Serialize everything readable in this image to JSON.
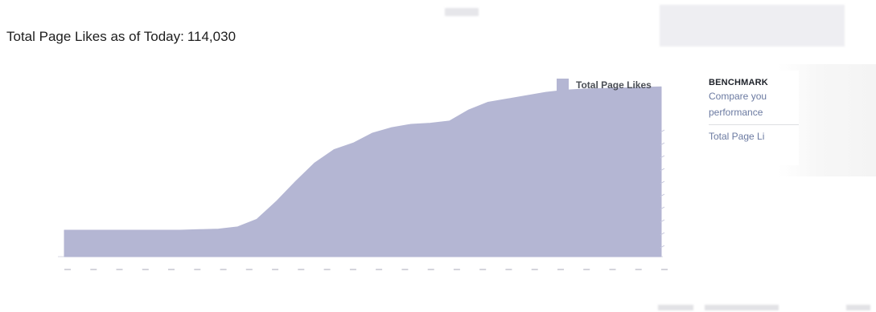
{
  "header": {
    "label": "Total Page Likes as of Today:",
    "value": "114,030"
  },
  "legend": {
    "label": "Total Page Likes",
    "color": "#b4b6d3"
  },
  "benchmark": {
    "title": "BENCHMARK",
    "line1": "Compare you",
    "line2": "performance",
    "metric": "Total Page Li"
  },
  "chart_data": {
    "type": "area",
    "title": "",
    "xlabel": "",
    "ylabel": "",
    "series": [
      {
        "name": "Total Page Likes",
        "values": [
          2.4,
          2.4,
          2.4,
          2.4,
          2.4,
          2.4,
          2.4,
          2.45,
          2.5,
          2.7,
          3.4,
          5.0,
          6.8,
          8.5,
          9.7,
          10.3,
          11.2,
          11.7,
          12.0,
          12.1,
          12.3,
          13.3,
          14.0,
          14.3,
          14.6,
          14.9,
          15.1,
          15.2,
          15.25,
          15.3,
          15.35,
          15.4
        ]
      }
    ],
    "ylim": [
      0,
      16
    ],
    "grid": false,
    "legend_position": "top-right",
    "color": "#b4b6d3"
  }
}
